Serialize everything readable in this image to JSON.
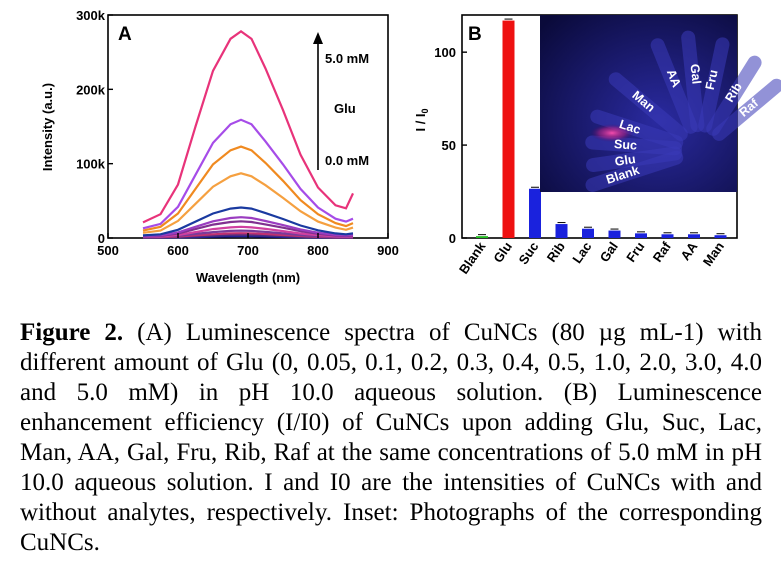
{
  "chart_data": [
    {
      "panel": "A",
      "type": "line",
      "xlabel": "Wavelength (nm)",
      "ylabel": "Intensity (a.u.)",
      "xlim": [
        500,
        900
      ],
      "ylim": [
        0,
        300000
      ],
      "xticks": [
        "500",
        "600",
        "700",
        "800",
        "900"
      ],
      "yticks": [
        "0",
        "100k",
        "200k",
        "300k"
      ],
      "grid": false,
      "annotations": {
        "top": "5.0 mM",
        "middle": "Glu",
        "bottom": "0.0 mM"
      },
      "x": [
        550,
        575,
        600,
        625,
        650,
        675,
        690,
        705,
        725,
        750,
        775,
        800,
        825,
        840,
        850
      ],
      "series": [
        {
          "color": "#1a1aa0",
          "values": [
            500,
            600,
            800,
            1200,
            1800,
            2300,
            2500,
            2400,
            2000,
            1500,
            1000,
            600,
            400,
            300,
            400
          ]
        },
        {
          "color": "#4b2d7f",
          "values": [
            700,
            900,
            1400,
            2200,
            3000,
            3800,
            4000,
            3800,
            3300,
            2500,
            1600,
            1000,
            600,
            500,
            600
          ]
        },
        {
          "color": "#c03070",
          "values": [
            900,
            1200,
            2000,
            3500,
            5000,
            6200,
            6500,
            6300,
            5400,
            4100,
            2700,
            1600,
            1000,
            800,
            1000
          ]
        },
        {
          "color": "#7a3a9a",
          "values": [
            1200,
            1600,
            3000,
            5500,
            8000,
            9600,
            10000,
            9600,
            8200,
            6200,
            4100,
            2500,
            1500,
            1200,
            1500
          ]
        },
        {
          "color": "#d040a0",
          "values": [
            1500,
            2000,
            4000,
            8000,
            12000,
            14300,
            15000,
            14300,
            12200,
            9300,
            6100,
            3800,
            2200,
            1800,
            2200
          ]
        },
        {
          "color": "#803090",
          "values": [
            2000,
            2800,
            6000,
            12000,
            18000,
            21500,
            22500,
            21500,
            18300,
            13900,
            9200,
            5700,
            3300,
            2700,
            3300
          ]
        },
        {
          "color": "#9a3cc0",
          "values": [
            2500,
            3500,
            7500,
            15000,
            22500,
            26900,
            28000,
            26900,
            22900,
            17400,
            11500,
            7100,
            4200,
            3400,
            4200
          ]
        },
        {
          "color": "#1a3aa0",
          "values": [
            3500,
            5000,
            11000,
            22000,
            33000,
            39500,
            41000,
            39500,
            33500,
            25500,
            16800,
            10400,
            6200,
            5000,
            6200
          ]
        },
        {
          "color": "#f5a040",
          "values": [
            7000,
            10000,
            23000,
            46000,
            69000,
            83000,
            87000,
            83000,
            71000,
            54000,
            36000,
            22000,
            14000,
            11000,
            14000
          ]
        },
        {
          "color": "#f08a20",
          "values": [
            10000,
            15000,
            33000,
            66000,
            99000,
            118000,
            123000,
            118000,
            101000,
            77000,
            51000,
            32000,
            20000,
            16000,
            20000
          ]
        },
        {
          "color": "#a64ce8",
          "values": [
            13000,
            19000,
            42000,
            85000,
            128000,
            153000,
            159000,
            153000,
            130000,
            99000,
            66000,
            41000,
            26000,
            22000,
            26000
          ]
        },
        {
          "color": "#e8337a",
          "values": [
            21000,
            32000,
            72000,
            150000,
            225000,
            268000,
            278000,
            268000,
            228000,
            172000,
            112000,
            68000,
            44000,
            40000,
            60000
          ]
        }
      ]
    },
    {
      "panel": "B",
      "type": "bar",
      "ylabel": "I / I0",
      "ylim": [
        0,
        120
      ],
      "yticks": [
        "0",
        "50",
        "100"
      ],
      "categories": [
        "Blank",
        "Glu",
        "Suc",
        "Rib",
        "Lac",
        "Gal",
        "Fru",
        "Raf",
        "AA",
        "Man"
      ],
      "values": [
        1.0,
        117,
        26.5,
        7.5,
        5.0,
        4.0,
        2.5,
        2.0,
        2.0,
        1.5
      ],
      "colors": [
        "#22bb22",
        "#ee1111",
        "#1a22dd",
        "#1a22dd",
        "#1a22dd",
        "#1a22dd",
        "#1a22dd",
        "#1a22dd",
        "#1a22dd",
        "#1a22dd"
      ],
      "inset": {
        "type": "photograph",
        "labels": [
          "Blank",
          "Glu",
          "Suc",
          "Lac",
          "Man",
          "AA",
          "Gal",
          "Fru",
          "Rib",
          "Raf"
        ]
      }
    }
  ],
  "caption": {
    "label": "Figure 2.",
    "text": "(A) Luminescence spectra of CuNCs (80 µg mL-1) with different amount of Glu (0, 0.05, 0.1, 0.2, 0.3, 0.4, 0.5, 1.0, 2.0, 3.0, 4.0 and 5.0 mM) in pH 10.0 aqueous solution. (B) Luminescence enhancement efficiency (I/I0) of CuNCs upon adding Glu, Suc, Lac, Man, AA, Gal, Fru, Rib, Raf at the same concentrations of 5.0 mM in pH 10.0 aqueous solution. I and I0 are the intensities of CuNCs with and without analytes, respectively. Inset: Photographs of the corresponding CuNCs."
  }
}
